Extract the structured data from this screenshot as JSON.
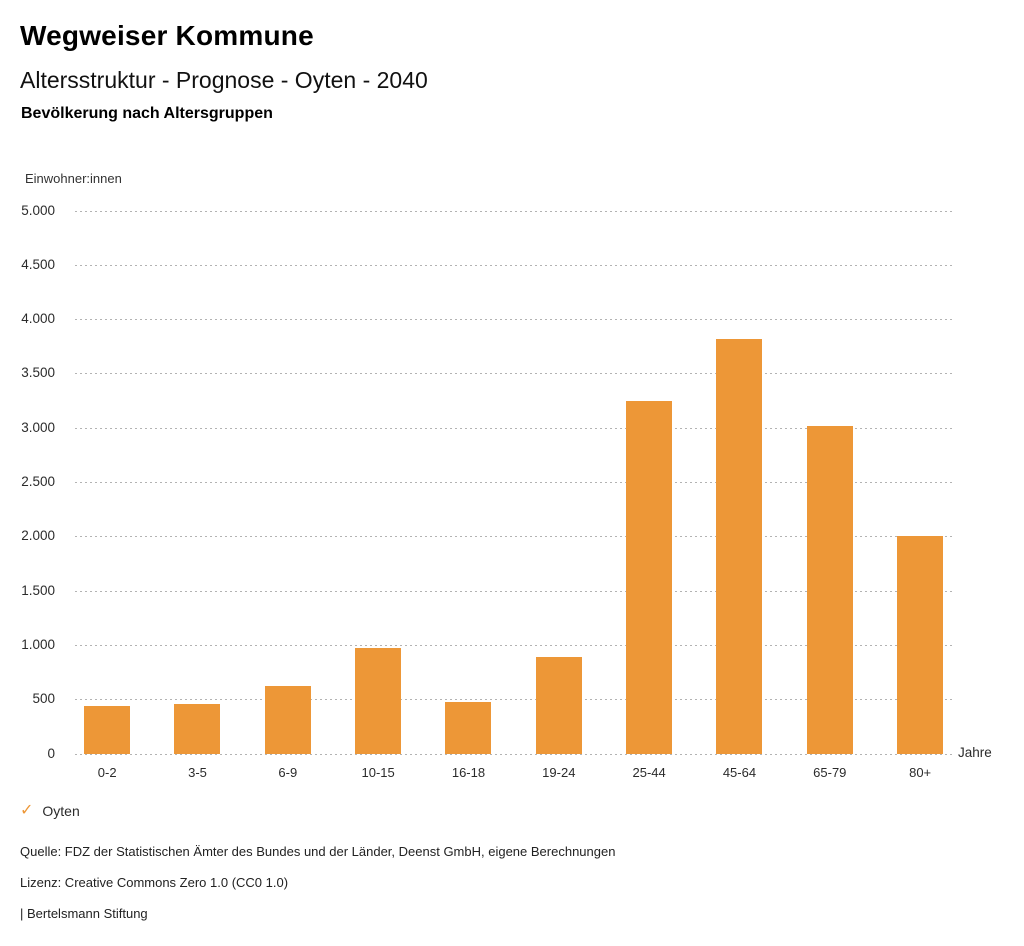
{
  "header": {
    "title": "Wegweiser Kommune",
    "subtitle": "Altersstruktur - Prognose - Oyten - 2040",
    "section_title": "Bevölkerung nach Altersgruppen"
  },
  "chart_data": {
    "type": "bar",
    "title": "Bevölkerung nach Altersgruppen",
    "series_name": "Oyten",
    "categories": [
      "0-2",
      "3-5",
      "6-9",
      "10-15",
      "16-18",
      "19-24",
      "25-44",
      "45-64",
      "65-79",
      "80+"
    ],
    "values": [
      435,
      455,
      625,
      975,
      470,
      890,
      3245,
      3815,
      3015,
      2000
    ],
    "xlabel": "Jahre",
    "ylabel": "Einwohner:innen",
    "ylim": [
      0,
      5000
    ],
    "ytick_step": 500,
    "ytick_labels": [
      "0",
      "500",
      "1.000",
      "1.500",
      "2.000",
      "2.500",
      "3.000",
      "3.500",
      "4.000",
      "4.500",
      "5.000"
    ],
    "grid": "horizontal dotted",
    "legend_position": "bottom-left",
    "bar_color": "#ED9737"
  },
  "legend": {
    "label": "Oyten",
    "check_icon": "✓",
    "check_color": "#ED9737"
  },
  "footer": {
    "source": "Quelle: FDZ der Statistischen Ämter des Bundes und der Länder, Deenst GmbH, eigene Berechnungen",
    "license": "Lizenz: Creative Commons Zero 1.0 (CC0 1.0)",
    "attribution": "| Bertelsmann Stiftung"
  },
  "colors": {
    "bar": "#ED9737",
    "grid": "#b3b3b3",
    "text": "#2b2b2b",
    "title": "#000000"
  }
}
